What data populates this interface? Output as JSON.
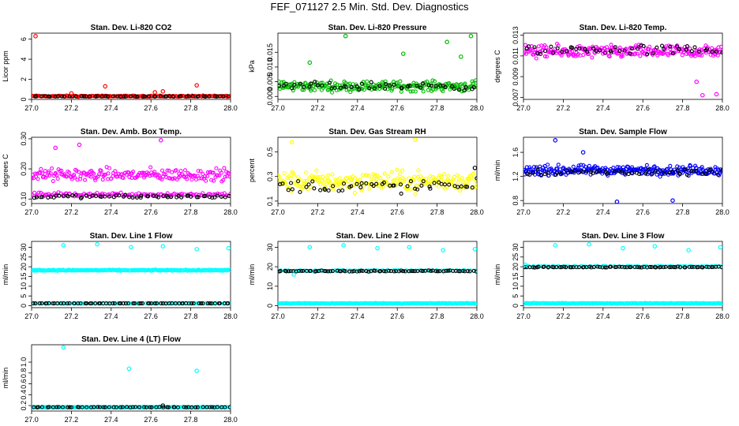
{
  "figure": {
    "title": "FEF_071127  2.5 Min. Std. Dev. Diagnostics"
  },
  "chart_data": [
    {
      "type": "scatter",
      "title": "Stan. Dev. Li-820 CO2",
      "ylabel": "Licor ppm",
      "xlim": [
        27.0,
        28.0
      ],
      "ylim": [
        0,
        6.6
      ],
      "xticks": [
        "27.0",
        "27.2",
        "27.4",
        "27.6",
        "27.8",
        "28.0"
      ],
      "yticks": [
        [
          "0",
          0
        ],
        [
          "2",
          2
        ],
        [
          "4",
          4
        ],
        [
          "6",
          6
        ]
      ],
      "bands": [
        {
          "name": "Li-820 CO2 std dev",
          "color": "#ff0000",
          "n": 170,
          "center": 0.32,
          "spread": 0.09
        },
        {
          "name": "daily-mean marker",
          "color": "#000000",
          "n": 55,
          "center": 0.3,
          "spread": 0.04
        }
      ],
      "points": [
        {
          "name": "outlier",
          "color": "#ff0000",
          "x": 27.02,
          "y": 6.3
        },
        {
          "name": "outlier",
          "color": "#ff0000",
          "x": 27.37,
          "y": 1.3
        },
        {
          "name": "outlier",
          "color": "#ff0000",
          "x": 27.62,
          "y": 0.7
        },
        {
          "name": "outlier",
          "color": "#ff0000",
          "x": 27.66,
          "y": 0.8
        },
        {
          "name": "outlier",
          "color": "#ff0000",
          "x": 27.83,
          "y": 1.4
        },
        {
          "name": "outlier",
          "color": "#ff0000",
          "x": 27.2,
          "y": 0.6
        }
      ]
    },
    {
      "type": "scatter",
      "title": "Stan. Dev. Li-820 Pressure",
      "ylabel": "kPa",
      "xlim": [
        27.0,
        28.0
      ],
      "ylim": [
        -0.001,
        0.0215
      ],
      "xticks": [
        "27.0",
        "27.2",
        "27.4",
        "27.6",
        "27.8",
        "28.0"
      ],
      "yticks": [
        [
          "0.000",
          0.0
        ],
        [
          "0.005",
          0.005
        ],
        [
          "0.010",
          0.01
        ],
        [
          "0.015",
          0.015
        ]
      ],
      "bands": [
        {
          "name": "Li-820 pressure std dev",
          "color": "#00bb00",
          "n": 230,
          "center": 0.0035,
          "spread": 0.0025
        },
        {
          "name": "daily-mean marker",
          "color": "#000000",
          "n": 50,
          "center": 0.0035,
          "spread": 0.002
        }
      ],
      "points": [
        {
          "name": "outlier",
          "color": "#00bb00",
          "x": 27.34,
          "y": 0.0205
        },
        {
          "name": "outlier",
          "color": "#00bb00",
          "x": 27.97,
          "y": 0.0205
        },
        {
          "name": "outlier",
          "color": "#00bb00",
          "x": 27.16,
          "y": 0.0115
        },
        {
          "name": "outlier",
          "color": "#00bb00",
          "x": 27.63,
          "y": 0.0145
        },
        {
          "name": "outlier",
          "color": "#00bb00",
          "x": 27.85,
          "y": 0.0185
        },
        {
          "name": "outlier",
          "color": "#00bb00",
          "x": 27.92,
          "y": 0.0135
        }
      ]
    },
    {
      "type": "scatter",
      "title": "Stan. Dev. Li-820 Temp.",
      "ylabel": "degrees C",
      "xlim": [
        27.0,
        28.0
      ],
      "ylim": [
        0.0068,
        0.0132
      ],
      "xticks": [
        "27.0",
        "27.2",
        "27.4",
        "27.6",
        "27.8",
        "28.0"
      ],
      "yticks": [
        [
          "0.007",
          0.007
        ],
        [
          "0.009",
          0.009
        ],
        [
          "0.011",
          0.011
        ],
        [
          "0.013",
          0.013
        ]
      ],
      "bands": [
        {
          "name": "Li-820 temp std dev",
          "color": "#ff00ff",
          "n": 240,
          "center": 0.0114,
          "spread": 0.0009
        },
        {
          "name": "daily-mean marker",
          "color": "#000000",
          "n": 50,
          "center": 0.0116,
          "spread": 0.0007
        }
      ],
      "points": [
        {
          "name": "outlier",
          "color": "#ff00ff",
          "x": 27.9,
          "y": 0.0072
        },
        {
          "name": "outlier",
          "color": "#ff00ff",
          "x": 27.97,
          "y": 0.0073
        },
        {
          "name": "outlier",
          "color": "#ff00ff",
          "x": 27.87,
          "y": 0.0085
        }
      ]
    },
    {
      "type": "scatter",
      "title": "Stan. Dev. Amb. Box Temp.",
      "ylabel": "degrees C",
      "xlim": [
        27.0,
        28.0
      ],
      "ylim": [
        0.085,
        0.305
      ],
      "xticks": [
        "27.0",
        "27.2",
        "27.4",
        "27.6",
        "27.8",
        "28.0"
      ],
      "yticks": [
        [
          "0.10",
          0.1
        ],
        [
          "0.20",
          0.2
        ],
        [
          "0.30",
          0.3
        ]
      ],
      "bands": [
        {
          "name": "box temp upper cluster",
          "color": "#ff00ff",
          "n": 200,
          "center": 0.18,
          "spread": 0.03
        },
        {
          "name": "box temp lower cluster",
          "color": "#ff00ff",
          "n": 120,
          "center": 0.115,
          "spread": 0.01
        },
        {
          "name": "daily-mean marker",
          "color": "#000000",
          "n": 60,
          "center": 0.108,
          "spread": 0.008
        }
      ],
      "points": [
        {
          "name": "outlier",
          "color": "#ff00ff",
          "x": 27.24,
          "y": 0.28
        },
        {
          "name": "outlier",
          "color": "#ff00ff",
          "x": 27.65,
          "y": 0.295
        },
        {
          "name": "outlier",
          "color": "#ff00ff",
          "x": 27.12,
          "y": 0.27
        }
      ]
    },
    {
      "type": "scatter",
      "title": "Stan. Dev. Gas Stream RH",
      "ylabel": "percent",
      "xlim": [
        27.0,
        28.0
      ],
      "ylim": [
        0.08,
        0.62
      ],
      "xticks": [
        "27.0",
        "27.2",
        "27.4",
        "27.6",
        "27.8",
        "28.0"
      ],
      "yticks": [
        [
          "0.1",
          0.1
        ],
        [
          "0.3",
          0.3
        ],
        [
          "0.5",
          0.5
        ]
      ],
      "bands": [
        {
          "name": "gas stream RH std dev",
          "color": "#ffff00",
          "n": 230,
          "center": 0.26,
          "spread": 0.12
        },
        {
          "name": "daily-mean marker",
          "color": "#000000",
          "n": 55,
          "center": 0.22,
          "spread": 0.08
        }
      ],
      "points": [
        {
          "name": "outlier",
          "color": "#ffff00",
          "x": 27.07,
          "y": 0.58
        },
        {
          "name": "outlier",
          "color": "#ffff00",
          "x": 27.69,
          "y": 0.6
        },
        {
          "name": "outlier",
          "color": "#000000",
          "x": 27.99,
          "y": 0.37
        }
      ]
    },
    {
      "type": "scatter",
      "title": "Stan. Dev. Sample Flow",
      "ylabel": "ml/min",
      "xlim": [
        27.0,
        28.0
      ],
      "ylim": [
        0.75,
        1.85
      ],
      "xticks": [
        "27.0",
        "27.2",
        "27.4",
        "27.6",
        "27.8",
        "28.0"
      ],
      "yticks": [
        [
          "0.8",
          0.8
        ],
        [
          "1.2",
          1.2
        ],
        [
          "1.6",
          1.6
        ]
      ],
      "bands": [
        {
          "name": "sample flow std dev",
          "color": "#0000ff",
          "n": 260,
          "center": 1.3,
          "spread": 0.12
        },
        {
          "name": "daily-mean marker",
          "color": "#000000",
          "n": 50,
          "center": 1.27,
          "spread": 0.08
        }
      ],
      "points": [
        {
          "name": "outlier",
          "color": "#0000ff",
          "x": 27.16,
          "y": 1.8
        },
        {
          "name": "outlier",
          "color": "#0000ff",
          "x": 27.47,
          "y": 0.78
        },
        {
          "name": "outlier",
          "color": "#0000ff",
          "x": 27.75,
          "y": 0.8
        },
        {
          "name": "outlier",
          "color": "#0000ff",
          "x": 27.3,
          "y": 1.6
        }
      ]
    },
    {
      "type": "scatter",
      "title": "Stan. Dev. Line 1 Flow",
      "ylabel": "ml/min",
      "xlim": [
        27.0,
        28.0
      ],
      "ylim": [
        -1,
        33
      ],
      "xticks": [
        "27.0",
        "27.2",
        "27.4",
        "27.6",
        "27.8",
        "28.0"
      ],
      "yticks": [
        [
          "0",
          0
        ],
        [
          "5",
          5
        ],
        [
          "10",
          10
        ],
        [
          "15",
          15
        ],
        [
          "20",
          20
        ],
        [
          "25",
          25
        ],
        [
          "30",
          30
        ]
      ],
      "bands": [
        {
          "name": "line 1 flow std dev",
          "color": "#00ffff",
          "n": 230,
          "center": 18.2,
          "spread": 0.4
        },
        {
          "name": "line 1 zero baseline",
          "color": "#00ffff",
          "n": 90,
          "center": 1.2,
          "spread": 0.1
        },
        {
          "name": "daily-mean marker",
          "color": "#000000",
          "n": 70,
          "center": 1.2,
          "spread": 0.05
        }
      ],
      "points": [
        {
          "name": "outlier",
          "color": "#00ffff",
          "x": 27.16,
          "y": 31
        },
        {
          "name": "outlier",
          "color": "#00ffff",
          "x": 27.33,
          "y": 31.5
        },
        {
          "name": "outlier",
          "color": "#00ffff",
          "x": 27.5,
          "y": 30
        },
        {
          "name": "outlier",
          "color": "#00ffff",
          "x": 27.66,
          "y": 30.5
        },
        {
          "name": "outlier",
          "color": "#00ffff",
          "x": 27.83,
          "y": 29
        },
        {
          "name": "outlier",
          "color": "#00ffff",
          "x": 27.99,
          "y": 29.5
        }
      ]
    },
    {
      "type": "scatter",
      "title": "Stan. Dev. Line 2 Flow",
      "ylabel": "ml/min",
      "xlim": [
        27.0,
        28.0
      ],
      "ylim": [
        -1,
        33
      ],
      "xticks": [
        "27.0",
        "27.2",
        "27.4",
        "27.6",
        "27.8",
        "28.0"
      ],
      "yticks": [
        [
          "0",
          0
        ],
        [
          "10",
          10
        ],
        [
          "20",
          20
        ],
        [
          "30",
          30
        ]
      ],
      "bands": [
        {
          "name": "line 2 zero baseline",
          "color": "#00ffff",
          "n": 230,
          "center": 1.2,
          "spread": 0.3
        },
        {
          "name": "line 2 flow std dev",
          "color": "#00ffff",
          "n": 80,
          "center": 18,
          "spread": 0.4
        },
        {
          "name": "daily-mean marker",
          "color": "#000000",
          "n": 80,
          "center": 17.8,
          "spread": 0.4
        }
      ],
      "points": [
        {
          "name": "outlier",
          "color": "#00ffff",
          "x": 27.16,
          "y": 30
        },
        {
          "name": "outlier",
          "color": "#00ffff",
          "x": 27.33,
          "y": 31
        },
        {
          "name": "outlier",
          "color": "#00ffff",
          "x": 27.5,
          "y": 29.5
        },
        {
          "name": "outlier",
          "color": "#00ffff",
          "x": 27.66,
          "y": 30
        },
        {
          "name": "outlier",
          "color": "#00ffff",
          "x": 27.83,
          "y": 28.5
        },
        {
          "name": "outlier",
          "color": "#00ffff",
          "x": 27.99,
          "y": 29
        },
        {
          "name": "outlier",
          "color": "#00ffff",
          "x": 27.08,
          "y": 16
        }
      ]
    },
    {
      "type": "scatter",
      "title": "Stan. Dev. Line 3 Flow",
      "ylabel": "ml/min",
      "xlim": [
        27.0,
        28.0
      ],
      "ylim": [
        -1,
        33
      ],
      "xticks": [
        "27.0",
        "27.2",
        "27.4",
        "27.6",
        "27.8",
        "28.0"
      ],
      "yticks": [
        [
          "0",
          0
        ],
        [
          "5",
          5
        ],
        [
          "10",
          10
        ],
        [
          "15",
          15
        ],
        [
          "20",
          20
        ],
        [
          "25",
          25
        ],
        [
          "30",
          30
        ]
      ],
      "bands": [
        {
          "name": "line 3 zero baseline",
          "color": "#00ffff",
          "n": 230,
          "center": 1.2,
          "spread": 0.3
        },
        {
          "name": "line 3 flow std dev",
          "color": "#00ffff",
          "n": 80,
          "center": 20.2,
          "spread": 0.3
        },
        {
          "name": "daily-mean marker",
          "color": "#000000",
          "n": 80,
          "center": 19.8,
          "spread": 0.3
        }
      ],
      "points": [
        {
          "name": "outlier",
          "color": "#00ffff",
          "x": 27.16,
          "y": 31
        },
        {
          "name": "outlier",
          "color": "#00ffff",
          "x": 27.33,
          "y": 31.5
        },
        {
          "name": "outlier",
          "color": "#00ffff",
          "x": 27.5,
          "y": 29.5
        },
        {
          "name": "outlier",
          "color": "#00ffff",
          "x": 27.66,
          "y": 30.5
        },
        {
          "name": "outlier",
          "color": "#00ffff",
          "x": 27.83,
          "y": 28.5
        },
        {
          "name": "outlier",
          "color": "#00ffff",
          "x": 27.99,
          "y": 30
        },
        {
          "name": "outlier",
          "color": "#00ffff",
          "x": 27.01,
          "y": 21
        }
      ]
    },
    {
      "type": "scatter",
      "title": "Stan. Dev. Line 4 (LT) Flow",
      "ylabel": "ml/min",
      "xlim": [
        27.0,
        28.0
      ],
      "ylim": [
        0.1,
        1.32
      ],
      "xticks": [
        "27.0",
        "27.2",
        "27.4",
        "27.6",
        "27.8",
        "28.0"
      ],
      "yticks": [
        [
          "0.2",
          0.2
        ],
        [
          "0.4",
          0.4
        ],
        [
          "0.6",
          0.6
        ],
        [
          "0.8",
          0.8
        ],
        [
          "1.0",
          1.0
        ]
      ],
      "bands": [
        {
          "name": "line 4 flow std dev",
          "color": "#00ffff",
          "n": 220,
          "center": 0.17,
          "spread": 0.008
        },
        {
          "name": "daily-mean marker",
          "color": "#000000",
          "n": 60,
          "center": 0.17,
          "spread": 0.006
        }
      ],
      "points": [
        {
          "name": "outlier",
          "color": "#00ffff",
          "x": 27.16,
          "y": 1.27
        },
        {
          "name": "outlier",
          "color": "#00ffff",
          "x": 27.49,
          "y": 0.88
        },
        {
          "name": "outlier",
          "color": "#00ffff",
          "x": 27.83,
          "y": 0.84
        },
        {
          "name": "outlier",
          "color": "#000000",
          "x": 27.66,
          "y": 0.2
        }
      ]
    }
  ]
}
